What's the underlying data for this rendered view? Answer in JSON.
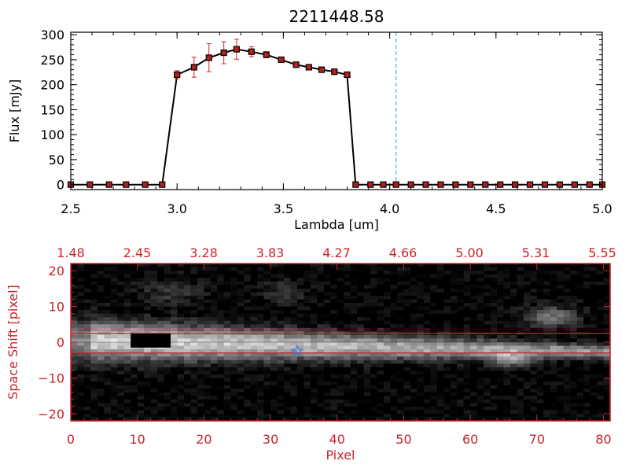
{
  "colors": {
    "axis_red": "#cc2229",
    "errorbar_red": "#cc2229",
    "marker_red": "#b02020",
    "dashed_blue": "#2aa0d8",
    "star_blue": "#3a7fe0",
    "line_black": "#000000"
  },
  "chart_data": [
    {
      "type": "line",
      "title": "2211448.58",
      "xlabel": "Lambda [um]",
      "ylabel": "Flux [mJy]",
      "xlim": [
        2.5,
        5.0
      ],
      "ylim": [
        -10,
        305
      ],
      "xticks": [
        2.5,
        3.0,
        3.5,
        4.0,
        4.5,
        5.0
      ],
      "xtick_labels": [
        "2.5",
        "3.0",
        "3.5",
        "4.0",
        "4.5",
        "5.0"
      ],
      "yticks": [
        0,
        50,
        100,
        150,
        200,
        250,
        300
      ],
      "ytick_labels": [
        "0",
        "50",
        "100",
        "150",
        "200",
        "250",
        "300"
      ],
      "grid": false,
      "vline_x": 4.03,
      "series": [
        {
          "x": [
            2.5,
            2.59,
            2.68,
            2.76,
            2.85,
            2.93,
            3.0,
            3.08,
            3.15,
            3.22,
            3.28,
            3.35,
            3.42,
            3.49,
            3.56,
            3.62,
            3.68,
            3.74,
            3.8,
            3.84,
            3.91,
            3.97,
            4.03,
            4.1,
            4.17,
            4.24,
            4.31,
            4.38,
            4.45,
            4.52,
            4.59,
            4.66,
            4.73,
            4.8,
            4.87,
            4.94,
            5.0
          ],
          "y": [
            0,
            0,
            0,
            0,
            0,
            0,
            220,
            235,
            254,
            264,
            271,
            266,
            260,
            250,
            240,
            235,
            230,
            226,
            220,
            0,
            0,
            0,
            0,
            0,
            0,
            0,
            0,
            0,
            0,
            0,
            0,
            0,
            0,
            0,
            0,
            0,
            0
          ],
          "err": [
            0,
            0,
            0,
            0,
            0,
            0,
            8,
            20,
            28,
            22,
            20,
            10,
            6,
            4,
            4,
            4,
            4,
            4,
            4,
            0,
            0,
            0,
            0,
            0,
            0,
            0,
            0,
            0,
            0,
            0,
            0,
            0,
            0,
            0,
            0,
            0,
            0
          ]
        }
      ]
    },
    {
      "type": "heatmap",
      "xlabel": "Pixel",
      "ylabel": "Space Shift [pixel]",
      "xlim": [
        0,
        81
      ],
      "ylim": [
        -22,
        22
      ],
      "xticks": [
        0,
        10,
        20,
        30,
        40,
        50,
        60,
        70,
        80
      ],
      "xtick_labels": [
        "0",
        "10",
        "20",
        "30",
        "40",
        "50",
        "60",
        "70",
        "80"
      ],
      "yticks": [
        -20,
        -10,
        0,
        10,
        20
      ],
      "ytick_labels": [
        "−20",
        "−10",
        "0",
        "10",
        "20"
      ],
      "top_axis_labels": [
        "1.48",
        "2.45",
        "3.28",
        "3.83",
        "4.27",
        "4.66",
        "5.00",
        "5.31",
        "5.55"
      ],
      "hlines": [
        2.5,
        -3.0
      ],
      "star": {
        "x": 34,
        "y": -2.5
      },
      "masked_block": {
        "x0": 9,
        "x1": 15,
        "y0": -1.5,
        "y1": 2.5
      }
    }
  ]
}
